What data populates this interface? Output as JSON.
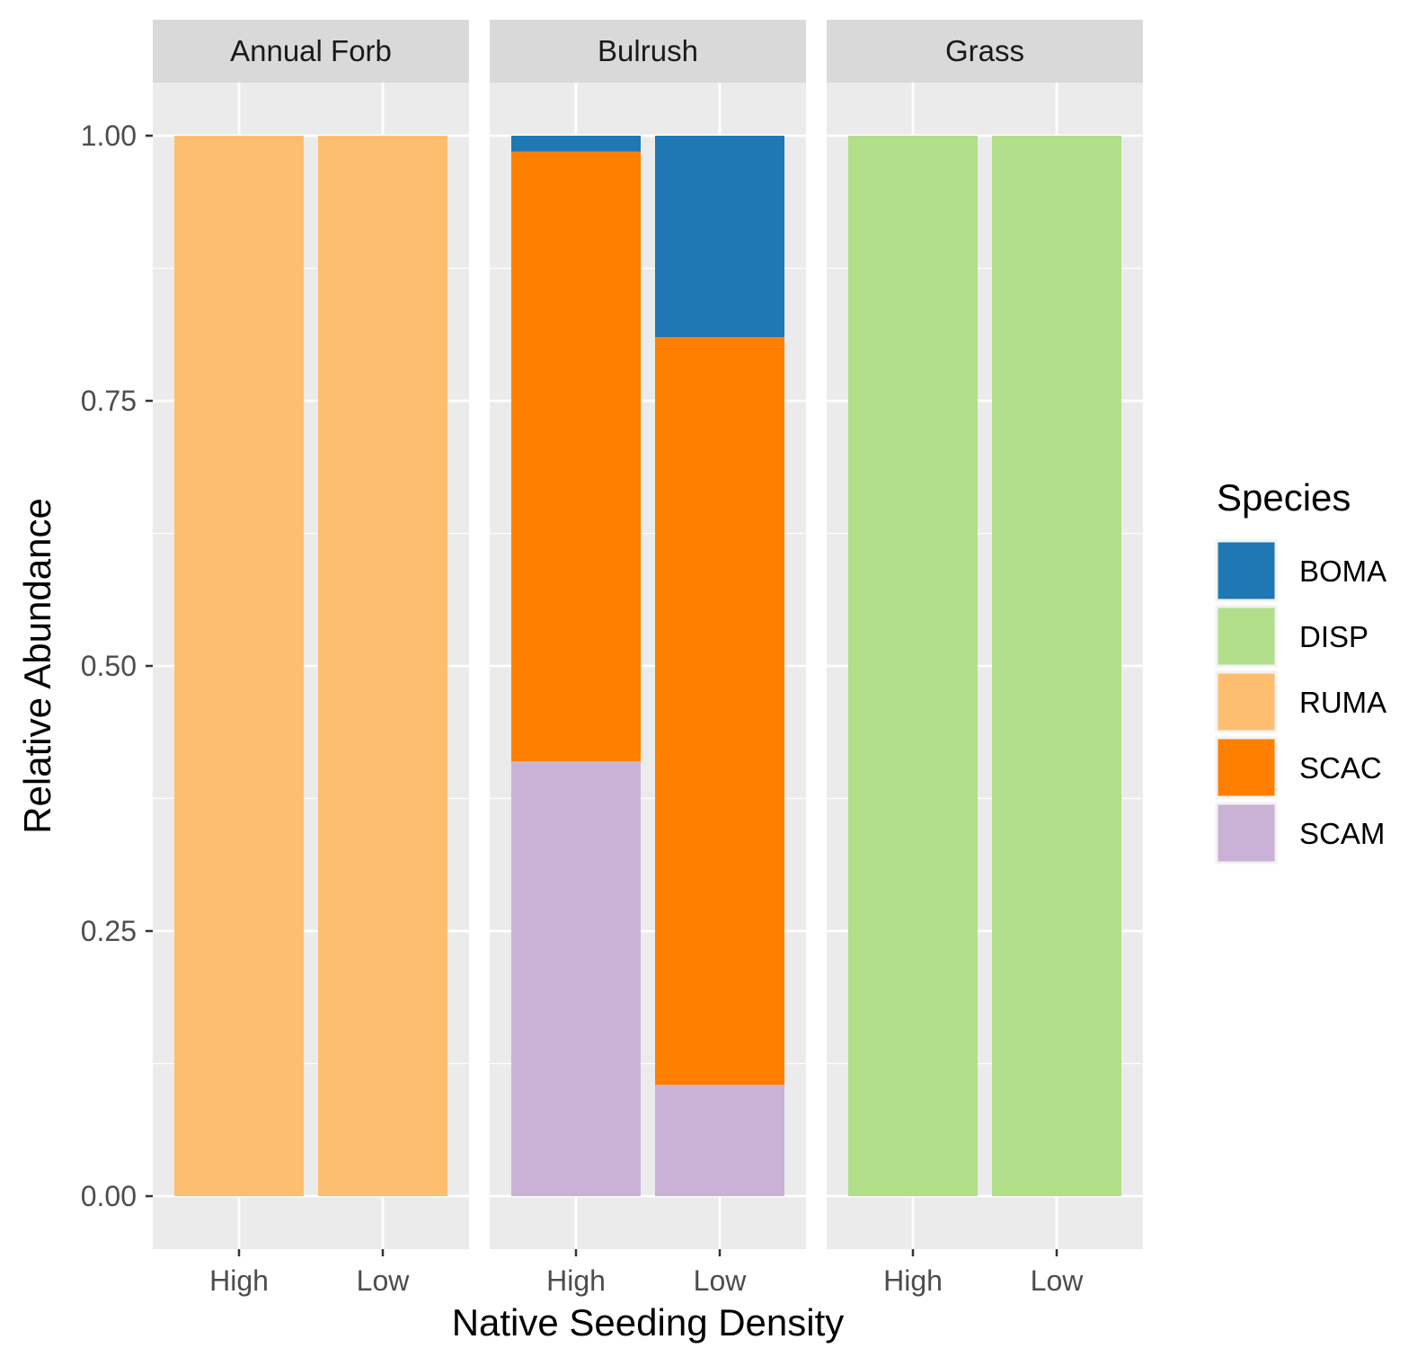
{
  "chart_data": {
    "type": "bar",
    "stacked": true,
    "facet_by": "functional group",
    "facets": [
      {
        "label": "Annual Forb",
        "categories": [
          "High",
          "Low"
        ],
        "stacks": [
          [
            {
              "species": "RUMA",
              "value": 1.0
            }
          ],
          [
            {
              "species": "RUMA",
              "value": 1.0
            }
          ]
        ]
      },
      {
        "label": "Bulrush",
        "categories": [
          "High",
          "Low"
        ],
        "stacks": [
          [
            {
              "species": "SCAM",
              "value": 0.41
            },
            {
              "species": "SCAC",
              "value": 0.575
            },
            {
              "species": "BOMA",
              "value": 0.015
            }
          ],
          [
            {
              "species": "SCAM",
              "value": 0.105
            },
            {
              "species": "SCAC",
              "value": 0.705
            },
            {
              "species": "BOMA",
              "value": 0.19
            }
          ]
        ]
      },
      {
        "label": "Grass",
        "categories": [
          "High",
          "Low"
        ],
        "stacks": [
          [
            {
              "species": "DISP",
              "value": 1.0
            }
          ],
          [
            {
              "species": "DISP",
              "value": 1.0
            }
          ]
        ]
      }
    ],
    "xlabel": "Native Seeding Density",
    "ylabel": "Relative Abundance",
    "ylim": [
      -0.05,
      1.05
    ],
    "yticks": [
      0.0,
      0.25,
      0.5,
      0.75,
      1.0
    ],
    "ytick_labels": [
      "0.00",
      "0.25",
      "0.50",
      "0.75",
      "1.00"
    ],
    "grid": true,
    "legend": {
      "title": "Species",
      "position": "right",
      "items": [
        {
          "name": "BOMA",
          "color": "#1f78b4"
        },
        {
          "name": "DISP",
          "color": "#b2df8a"
        },
        {
          "name": "RUMA",
          "color": "#fdbf6f"
        },
        {
          "name": "SCAC",
          "color": "#ff7f00"
        },
        {
          "name": "SCAM",
          "color": "#cab2d6"
        }
      ]
    },
    "colors": {
      "panel_background": "#ebebeb",
      "strip_background": "#d9d9d9",
      "gridline": "#ffffff"
    }
  }
}
